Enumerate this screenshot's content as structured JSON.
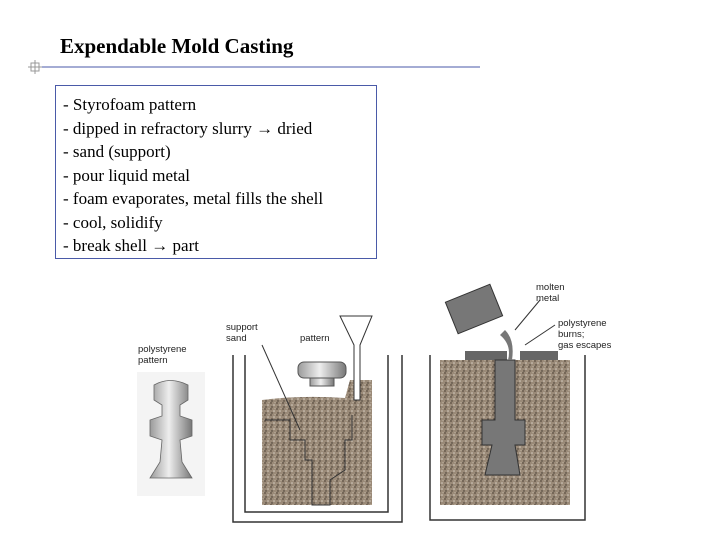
{
  "header": {
    "title": "Expendable Mold Casting"
  },
  "bullets": [
    "- Styrofoam pattern",
    "- dipped in refractory slurry → dried",
    "- sand (support)",
    "- pour liquid metal",
    "- foam evaporates, metal fills the shell",
    "- cool, solidify",
    "- break shell → part"
  ],
  "diagram": {
    "labels": [
      [
        "polystyrene",
        "pattern"
      ],
      [
        "support",
        "sand"
      ],
      [
        "pattern"
      ],
      [
        "molten",
        "metal"
      ],
      [
        "polystyrene",
        "burns;",
        "gas escapes"
      ]
    ]
  }
}
